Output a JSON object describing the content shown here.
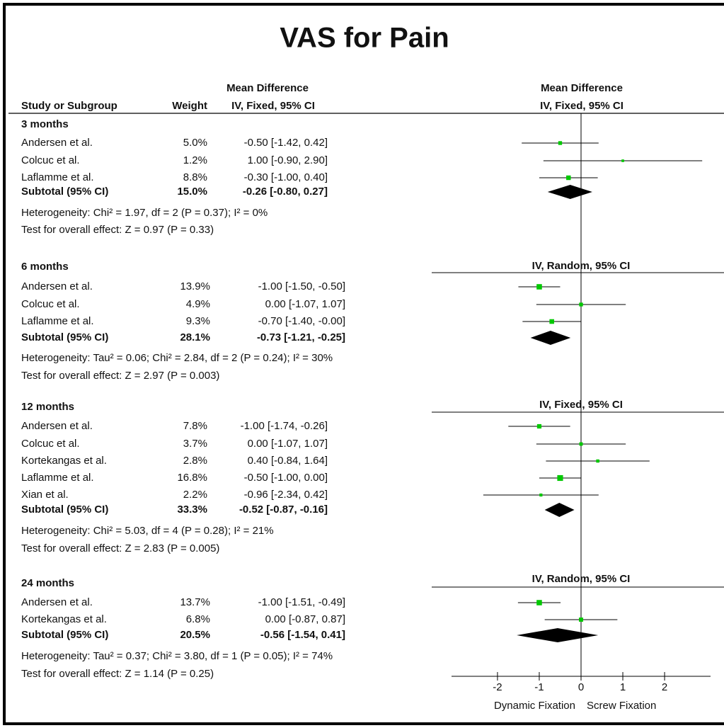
{
  "chart_data": {
    "type": "forest",
    "title": "VAS for Pain",
    "header": {
      "study": "Study or Subgroup",
      "weight": "Weight",
      "effect_top": "Mean Difference",
      "effect": "IV, Fixed, 95% CI",
      "plot_top": "Mean Difference",
      "plot": "IV, Fixed, 95% CI"
    },
    "xlim": [
      -3.1,
      3.1
    ],
    "xticks": [
      -2,
      -1,
      0,
      1,
      2
    ],
    "xlabel_left": "Dynamic Fixation",
    "xlabel_right": "Screw Fixation",
    "color": "#00c800",
    "groups": [
      {
        "name": "3 months",
        "studies": [
          {
            "name": "Andersen et al.",
            "weight": 5.0,
            "weight_label": "5.0%",
            "md": -0.5,
            "lo": -1.42,
            "hi": 0.42,
            "ci_label": "-0.50 [-1.42, 0.42]"
          },
          {
            "name": "Colcuc et al.",
            "weight": 1.2,
            "weight_label": "1.2%",
            "md": 1.0,
            "lo": -0.9,
            "hi": 2.9,
            "ci_label": "1.00 [-0.90, 2.90]"
          },
          {
            "name": "Laflamme et al.",
            "weight": 8.8,
            "weight_label": "8.8%",
            "md": -0.3,
            "lo": -1.0,
            "hi": 0.4,
            "ci_label": "-0.30 [-1.00, 0.40]"
          }
        ],
        "subtotal": {
          "name": "Subtotal (95% CI)",
          "weight": 15.0,
          "weight_label": "15.0%",
          "md": -0.26,
          "lo": -0.8,
          "hi": 0.27,
          "ci_label": "-0.26 [-0.80, 0.27]"
        },
        "heterogeneity": "Heterogeneity: Chi² = 1.97, df = 2 (P = 0.37); I² = 0%",
        "overall": "Test for overall effect: Z = 0.97 (P = 0.33)"
      },
      {
        "name": "6 months",
        "plot_header": "IV, Random, 95% CI",
        "studies": [
          {
            "name": "Andersen et al.",
            "weight": 13.9,
            "weight_label": "13.9%",
            "md": -1.0,
            "lo": -1.5,
            "hi": -0.5,
            "ci_label": "-1.00 [-1.50, -0.50]"
          },
          {
            "name": "Colcuc et al.",
            "weight": 4.9,
            "weight_label": "4.9%",
            "md": 0.0,
            "lo": -1.07,
            "hi": 1.07,
            "ci_label": "0.00 [-1.07, 1.07]"
          },
          {
            "name": "Laflamme et al.",
            "weight": 9.3,
            "weight_label": "9.3%",
            "md": -0.7,
            "lo": -1.4,
            "hi": -0.0,
            "ci_label": "-0.70 [-1.40, -0.00]"
          }
        ],
        "subtotal": {
          "name": "Subtotal (95% CI)",
          "weight": 28.1,
          "weight_label": "28.1%",
          "md": -0.73,
          "lo": -1.21,
          "hi": -0.25,
          "ci_label": "-0.73 [-1.21, -0.25]"
        },
        "heterogeneity": "Heterogeneity: Tau² = 0.06; Chi² = 2.84, df = 2 (P = 0.24); I² = 30%",
        "overall": "Test for overall effect: Z = 2.97 (P = 0.003)"
      },
      {
        "name": "12 months",
        "plot_header": "IV, Fixed, 95% CI",
        "studies": [
          {
            "name": "Andersen et al.",
            "weight": 7.8,
            "weight_label": "7.8%",
            "md": -1.0,
            "lo": -1.74,
            "hi": -0.26,
            "ci_label": "-1.00 [-1.74, -0.26]"
          },
          {
            "name": "Colcuc et al.",
            "weight": 3.7,
            "weight_label": "3.7%",
            "md": 0.0,
            "lo": -1.07,
            "hi": 1.07,
            "ci_label": "0.00 [-1.07, 1.07]"
          },
          {
            "name": "Kortekangas et al.",
            "weight": 2.8,
            "weight_label": "2.8%",
            "md": 0.4,
            "lo": -0.84,
            "hi": 1.64,
            "ci_label": "0.40 [-0.84, 1.64]"
          },
          {
            "name": "Laflamme et al.",
            "weight": 16.8,
            "weight_label": "16.8%",
            "md": -0.5,
            "lo": -1.0,
            "hi": 0.0,
            "ci_label": "-0.50 [-1.00, 0.00]"
          },
          {
            "name": "Xian et al.",
            "weight": 2.2,
            "weight_label": "2.2%",
            "md": -0.96,
            "lo": -2.34,
            "hi": 0.42,
            "ci_label": "-0.96 [-2.34, 0.42]"
          }
        ],
        "subtotal": {
          "name": "Subtotal (95% CI)",
          "weight": 33.3,
          "weight_label": "33.3%",
          "md": -0.52,
          "lo": -0.87,
          "hi": -0.16,
          "ci_label": "-0.52 [-0.87, -0.16]"
        },
        "heterogeneity": "Heterogeneity: Chi² = 5.03, df = 4 (P = 0.28); I² = 21%",
        "overall": "Test for overall effect: Z = 2.83 (P = 0.005)"
      },
      {
        "name": "24 months",
        "plot_header": "IV, Random, 95% CI",
        "studies": [
          {
            "name": "Andersen et al.",
            "weight": 13.7,
            "weight_label": "13.7%",
            "md": -1.0,
            "lo": -1.51,
            "hi": -0.49,
            "ci_label": "-1.00 [-1.51, -0.49]"
          },
          {
            "name": "Kortekangas et al.",
            "weight": 6.8,
            "weight_label": "6.8%",
            "md": 0.0,
            "lo": -0.87,
            "hi": 0.87,
            "ci_label": "0.00 [-0.87, 0.87]"
          }
        ],
        "subtotal": {
          "name": "Subtotal (95% CI)",
          "weight": 20.5,
          "weight_label": "20.5%",
          "md": -0.56,
          "lo": -1.54,
          "hi": 0.41,
          "ci_label": "-0.56 [-1.54, 0.41]"
        },
        "heterogeneity": "Heterogeneity: Tau² = 0.37; Chi² = 3.80, df = 1 (P = 0.05); I² = 74%",
        "overall": "Test for overall effect: Z = 1.14 (P = 0.25)"
      }
    ]
  }
}
